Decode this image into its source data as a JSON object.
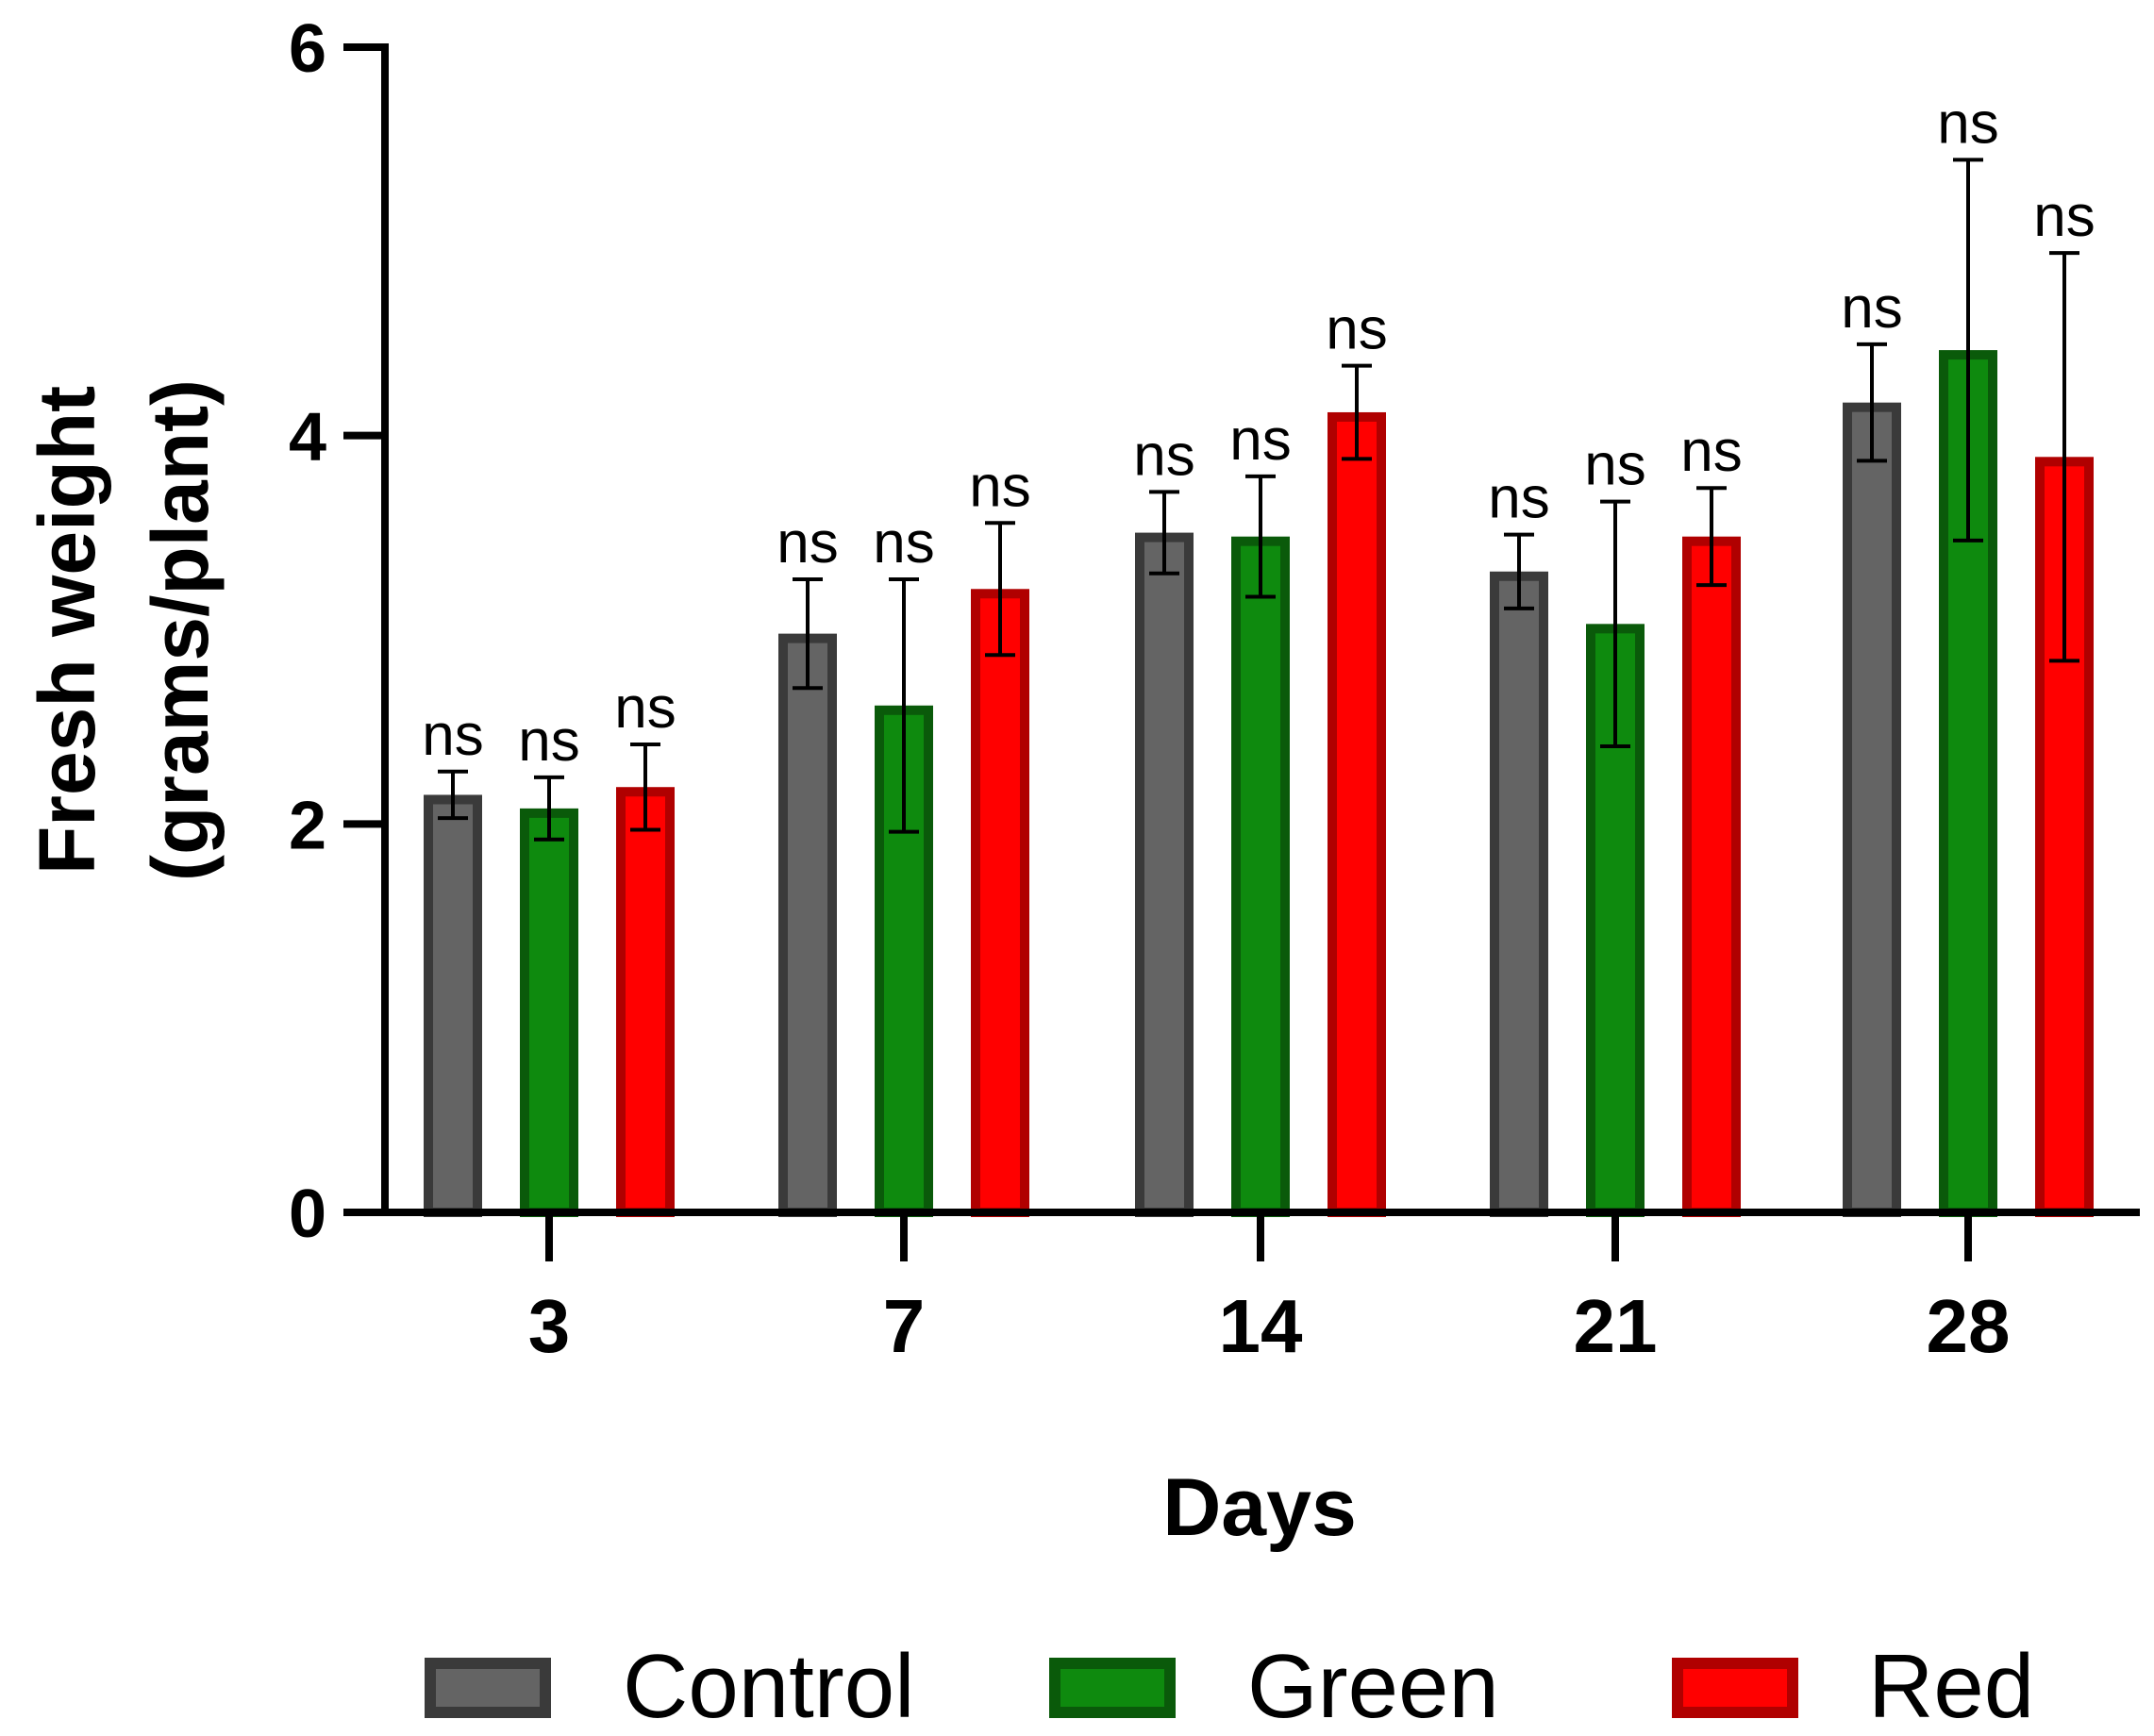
{
  "chart_data": {
    "type": "bar",
    "title": "",
    "xlabel": "Days",
    "ylabel_line1": "Fresh weight",
    "ylabel_line2": "(grams/plant)",
    "categories": [
      "3",
      "7",
      "14",
      "21",
      "28"
    ],
    "ylim": [
      0,
      6
    ],
    "yticks": [
      0,
      2,
      4,
      6
    ],
    "significance_label": "ns",
    "legend_position": "bottom",
    "series": [
      {
        "name": "Control",
        "fill": "#646464",
        "border": "#3a3a3a",
        "values": [
          2.15,
          2.98,
          3.5,
          3.3,
          4.17
        ],
        "errors": [
          0.12,
          0.28,
          0.21,
          0.19,
          0.3
        ],
        "labels": [
          "ns",
          "ns",
          "ns",
          "ns",
          "ns"
        ]
      },
      {
        "name": "Green",
        "fill": "#0e8a0e",
        "border": "#0a5a0a",
        "values": [
          2.08,
          2.61,
          3.48,
          3.03,
          4.44
        ],
        "errors": [
          0.16,
          0.65,
          0.31,
          0.63,
          0.98
        ],
        "labels": [
          "ns",
          "ns",
          "ns",
          "ns",
          "ns"
        ]
      },
      {
        "name": "Red",
        "fill": "#ff0000",
        "border": "#b00000",
        "values": [
          2.19,
          3.21,
          4.12,
          3.48,
          3.89
        ],
        "errors": [
          0.22,
          0.34,
          0.24,
          0.25,
          1.05
        ],
        "labels": [
          "ns",
          "ns",
          "ns",
          "ns",
          "ns"
        ]
      }
    ]
  }
}
